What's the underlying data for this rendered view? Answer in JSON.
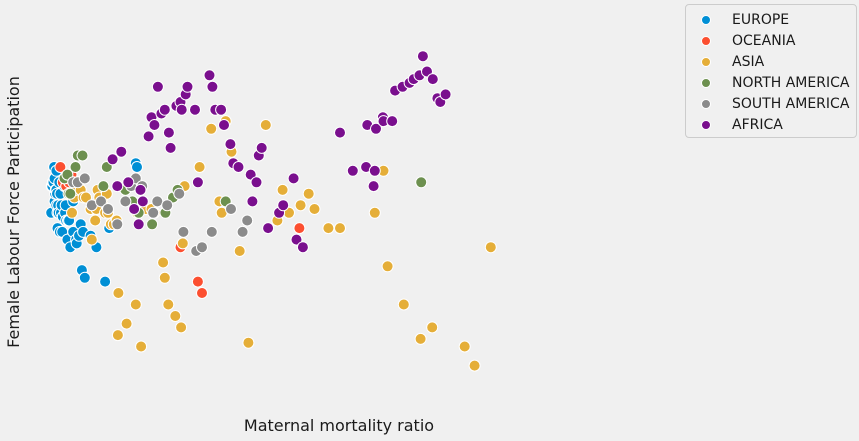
{
  "chart_data": {
    "type": "scatter",
    "title": "",
    "xlabel": "Maternal mortality ratio",
    "ylabel": "Female Labour Force Participation",
    "xlim": [
      0,
      1000
    ],
    "ylim": [
      0,
      100
    ],
    "grid": false,
    "legend_position": "top-right (outside plot)",
    "series": [
      {
        "name": "EUROPE",
        "color": "#008fd5",
        "points": [
          [
            2,
            49
          ],
          [
            3,
            56
          ],
          [
            4,
            56
          ],
          [
            5,
            57
          ],
          [
            6,
            57
          ],
          [
            7,
            61
          ],
          [
            8,
            52
          ],
          [
            8,
            58
          ],
          [
            9,
            54
          ],
          [
            10,
            55
          ],
          [
            11,
            60
          ],
          [
            11,
            55
          ],
          [
            11,
            51
          ],
          [
            12,
            54
          ],
          [
            13,
            49
          ],
          [
            13,
            45
          ],
          [
            14,
            51
          ],
          [
            15,
            49
          ],
          [
            16,
            57
          ],
          [
            17,
            44
          ],
          [
            18,
            54
          ],
          [
            19,
            49
          ],
          [
            20,
            51
          ],
          [
            21,
            44
          ],
          [
            22,
            48
          ],
          [
            25,
            56
          ],
          [
            26,
            49
          ],
          [
            27,
            51
          ],
          [
            28,
            47
          ],
          [
            30,
            42
          ],
          [
            31,
            47
          ],
          [
            33,
            47
          ],
          [
            35,
            40
          ],
          [
            40,
            44
          ],
          [
            40,
            52
          ],
          [
            45,
            42
          ],
          [
            46,
            41
          ],
          [
            50,
            43
          ],
          [
            53,
            46
          ],
          [
            55,
            34
          ],
          [
            57,
            44
          ],
          [
            60,
            32
          ],
          [
            70,
            43
          ],
          [
            72,
            50
          ],
          [
            80,
            40
          ],
          [
            95,
            31
          ],
          [
            102,
            45
          ],
          [
            148,
            62
          ],
          [
            150,
            61
          ]
        ]
      },
      {
        "name": "OCEANIA",
        "color": "#fc4f30",
        "points": [
          [
            18,
            61
          ],
          [
            22,
            57
          ],
          [
            28,
            56
          ],
          [
            33,
            57
          ],
          [
            37,
            59
          ],
          [
            50,
            55
          ],
          [
            225,
            40
          ],
          [
            255,
            31
          ],
          [
            262,
            28
          ],
          [
            430,
            45
          ]
        ]
      },
      {
        "name": "ASIA",
        "color": "#e5ae38",
        "points": [
          [
            38,
            49
          ],
          [
            42,
            53
          ],
          [
            45,
            55
          ],
          [
            47,
            57
          ],
          [
            50,
            57
          ],
          [
            53,
            55
          ],
          [
            58,
            53
          ],
          [
            62,
            53
          ],
          [
            70,
            50
          ],
          [
            72,
            42
          ],
          [
            78,
            47
          ],
          [
            80,
            50
          ],
          [
            82,
            55
          ],
          [
            85,
            53
          ],
          [
            90,
            52
          ],
          [
            95,
            49
          ],
          [
            98,
            54
          ],
          [
            100,
            49
          ],
          [
            105,
            46
          ],
          [
            110,
            46
          ],
          [
            115,
            47
          ],
          [
            117,
            17
          ],
          [
            118,
            28
          ],
          [
            132,
            20
          ],
          [
            148,
            25
          ],
          [
            150,
            49
          ],
          [
            157,
            14
          ],
          [
            165,
            50
          ],
          [
            175,
            50
          ],
          [
            180,
            49
          ],
          [
            195,
            36
          ],
          [
            198,
            32
          ],
          [
            204,
            25
          ],
          [
            216,
            22
          ],
          [
            226,
            19
          ],
          [
            229,
            41
          ],
          [
            232,
            56
          ],
          [
            258,
            61
          ],
          [
            278,
            71
          ],
          [
            292,
            52
          ],
          [
            296,
            49
          ],
          [
            303,
            73
          ],
          [
            313,
            65
          ],
          [
            327,
            39
          ],
          [
            342,
            15
          ],
          [
            372,
            72
          ],
          [
            392,
            47
          ],
          [
            401,
            55
          ],
          [
            412,
            49
          ],
          [
            432,
            51
          ],
          [
            446,
            54
          ],
          [
            456,
            50
          ],
          [
            480,
            45
          ],
          [
            500,
            45
          ],
          [
            560,
            49
          ],
          [
            575,
            60
          ],
          [
            582,
            35
          ],
          [
            610,
            25
          ],
          [
            639,
            16
          ],
          [
            659,
            19
          ],
          [
            715,
            14
          ],
          [
            732,
            9
          ],
          [
            760,
            40
          ]
        ]
      },
      {
        "name": "NORTH AMERICA",
        "color": "#6d904f",
        "points": [
          [
            25,
            58
          ],
          [
            30,
            59
          ],
          [
            32,
            54
          ],
          [
            35,
            54
          ],
          [
            44,
            61
          ],
          [
            48,
            64
          ],
          [
            56,
            64
          ],
          [
            92,
            56
          ],
          [
            98,
            61
          ],
          [
            130,
            55
          ],
          [
            142,
            52
          ],
          [
            153,
            49
          ],
          [
            176,
            46
          ],
          [
            199,
            49
          ],
          [
            212,
            53
          ],
          [
            220,
            55
          ],
          [
            303,
            52
          ],
          [
            640,
            57
          ]
        ]
      },
      {
        "name": "SOUTH AMERICA",
        "color": "#8b8b8b",
        "points": [
          [
            40,
            57
          ],
          [
            48,
            57
          ],
          [
            60,
            58
          ],
          [
            72,
            51
          ],
          [
            88,
            52
          ],
          [
            100,
            50
          ],
          [
            116,
            46
          ],
          [
            130,
            52
          ],
          [
            140,
            56
          ],
          [
            148,
            58
          ],
          [
            159,
            56
          ],
          [
            178,
            49
          ],
          [
            185,
            52
          ],
          [
            202,
            51
          ],
          [
            223,
            54
          ],
          [
            230,
            44
          ],
          [
            252,
            39
          ],
          [
            262,
            40
          ],
          [
            279,
            44
          ],
          [
            312,
            50
          ],
          [
            332,
            44
          ],
          [
            340,
            47
          ]
        ]
      },
      {
        "name": "AFRICA",
        "color": "#7a0f8e",
        "points": [
          [
            108,
            63
          ],
          [
            116,
            56
          ],
          [
            123,
            65
          ],
          [
            135,
            57
          ],
          [
            145,
            50
          ],
          [
            153,
            46
          ],
          [
            156,
            55
          ],
          [
            160,
            52
          ],
          [
            170,
            69
          ],
          [
            175,
            74
          ],
          [
            180,
            72
          ],
          [
            186,
            82
          ],
          [
            192,
            75
          ],
          [
            198,
            76
          ],
          [
            205,
            70
          ],
          [
            208,
            66
          ],
          [
            218,
            77
          ],
          [
            225,
            78
          ],
          [
            227,
            76
          ],
          [
            234,
            80
          ],
          [
            237,
            82
          ],
          [
            250,
            76
          ],
          [
            255,
            57
          ],
          [
            275,
            85
          ],
          [
            280,
            82
          ],
          [
            285,
            76
          ],
          [
            295,
            76
          ],
          [
            300,
            72
          ],
          [
            311,
            67
          ],
          [
            316,
            62
          ],
          [
            325,
            61
          ],
          [
            346,
            59
          ],
          [
            349,
            52
          ],
          [
            356,
            57
          ],
          [
            360,
            64
          ],
          [
            365,
            66
          ],
          [
            376,
            45
          ],
          [
            395,
            49
          ],
          [
            402,
            51
          ],
          [
            420,
            58
          ],
          [
            425,
            42
          ],
          [
            436,
            40
          ],
          [
            500,
            70
          ],
          [
            522,
            60
          ],
          [
            545,
            61
          ],
          [
            547,
            72
          ],
          [
            558,
            56
          ],
          [
            560,
            60
          ],
          [
            562,
            71
          ],
          [
            574,
            74
          ],
          [
            575,
            73
          ],
          [
            590,
            73
          ],
          [
            595,
            81
          ],
          [
            608,
            82
          ],
          [
            620,
            83
          ],
          [
            627,
            84
          ],
          [
            637,
            85
          ],
          [
            643,
            90
          ],
          [
            650,
            86
          ],
          [
            660,
            84
          ],
          [
            668,
            79
          ],
          [
            673,
            78
          ],
          [
            682,
            80
          ]
        ]
      }
    ]
  }
}
